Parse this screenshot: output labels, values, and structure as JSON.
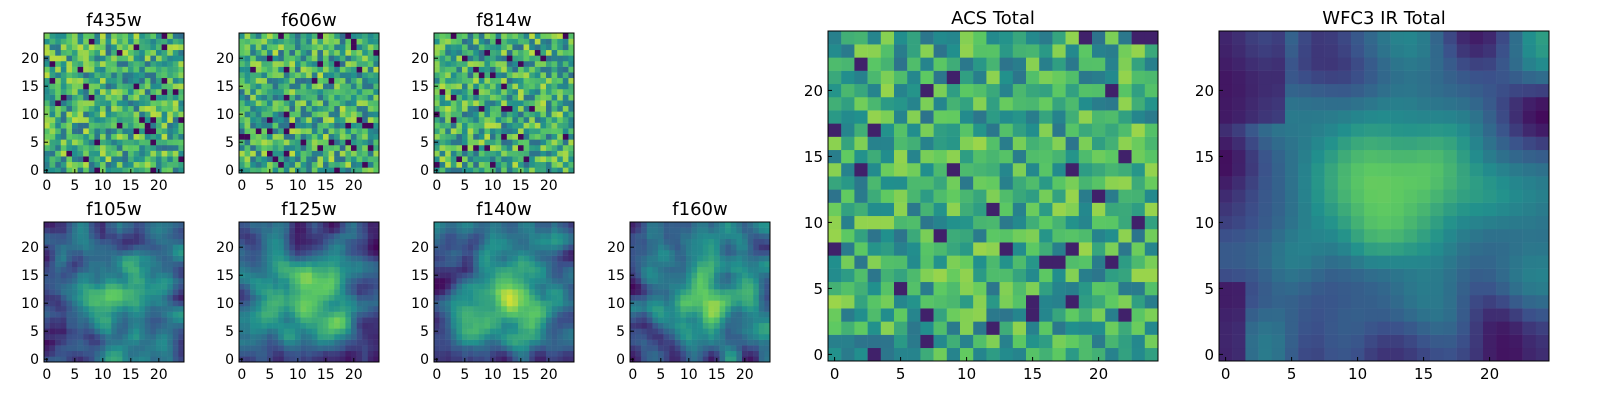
{
  "chart_data": [
    {
      "id": "f435w",
      "type": "heatmap",
      "title": "f435w",
      "grid_size": 25,
      "xticks": [
        0,
        5,
        10,
        15,
        20
      ],
      "yticks": [
        0,
        5,
        10,
        15,
        20
      ],
      "field": "noise",
      "seed": 11
    },
    {
      "id": "f606w",
      "type": "heatmap",
      "title": "f606w",
      "grid_size": 25,
      "xticks": [
        0,
        5,
        10,
        15,
        20
      ],
      "yticks": [
        0,
        5,
        10,
        15,
        20
      ],
      "field": "noise",
      "seed": 23
    },
    {
      "id": "f814w",
      "type": "heatmap",
      "title": "f814w",
      "grid_size": 25,
      "xticks": [
        0,
        5,
        10,
        15,
        20
      ],
      "yticks": [
        0,
        5,
        10,
        15,
        20
      ],
      "field": "noise",
      "seed": 37
    },
    {
      "id": "f105w",
      "type": "heatmap",
      "title": "f105w",
      "grid_size": 25,
      "xticks": [
        0,
        5,
        10,
        15,
        20
      ],
      "yticks": [
        0,
        5,
        10,
        15,
        20
      ],
      "field": "blob",
      "seed": 41
    },
    {
      "id": "f125w",
      "type": "heatmap",
      "title": "f125w",
      "grid_size": 25,
      "xticks": [
        0,
        5,
        10,
        15,
        20
      ],
      "yticks": [
        0,
        5,
        10,
        15,
        20
      ],
      "field": "blob",
      "seed": 53
    },
    {
      "id": "f140w",
      "type": "heatmap",
      "title": "f140w",
      "grid_size": 25,
      "xticks": [
        0,
        5,
        10,
        15,
        20
      ],
      "yticks": [
        0,
        5,
        10,
        15,
        20
      ],
      "field": "blob",
      "seed": 67
    },
    {
      "id": "f160w",
      "type": "heatmap",
      "title": "f160w",
      "grid_size": 25,
      "xticks": [
        0,
        5,
        10,
        15,
        20
      ],
      "yticks": [
        0,
        5,
        10,
        15,
        20
      ],
      "field": "blob",
      "seed": 79
    },
    {
      "id": "acs-total",
      "type": "heatmap",
      "title": "ACS Total",
      "grid_size": 25,
      "xticks": [
        0,
        5,
        10,
        15,
        20
      ],
      "yticks": [
        0,
        5,
        10,
        15,
        20
      ],
      "field": "coarse",
      "seed": 97
    },
    {
      "id": "wfc3-ir-total",
      "type": "heatmap",
      "title": "WFC3 IR Total",
      "grid_size": 25,
      "xticks": [
        0,
        5,
        10,
        15,
        20
      ],
      "yticks": [
        0,
        5,
        10,
        15,
        20
      ],
      "field": "smooth",
      "seed": 113
    }
  ],
  "colormap": {
    "name": "viridis-like",
    "stops": [
      "#440154",
      "#3b528b",
      "#21908d",
      "#5dc962",
      "#fde725"
    ]
  }
}
